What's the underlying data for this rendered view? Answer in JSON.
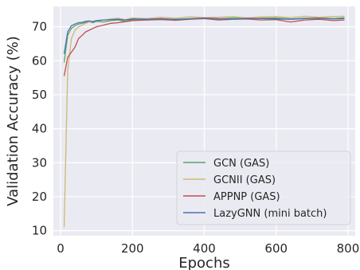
{
  "chart_data": {
    "type": "line",
    "title": "",
    "xlabel": "Epochs",
    "ylabel": "Validation Accuracy (%)",
    "xlim": [
      -20,
      820
    ],
    "ylim": [
      8.5,
      76
    ],
    "xticks": [
      0,
      200,
      400,
      600,
      800
    ],
    "yticks": [
      10,
      20,
      30,
      40,
      50,
      60,
      70
    ],
    "grid": true,
    "legend_position": "lower-right",
    "colors": {
      "background": "#eaeaf2",
      "grid": "#ffffff",
      "text": "#262626"
    },
    "x": [
      10,
      20,
      30,
      40,
      50,
      60,
      70,
      80,
      90,
      100,
      120,
      140,
      160,
      180,
      200,
      240,
      280,
      320,
      360,
      400,
      440,
      480,
      520,
      560,
      600,
      640,
      680,
      720,
      760,
      790
    ],
    "series": [
      {
        "name": "GCN (GAS)",
        "color": "#55a868",
        "values": [
          59.5,
          67.5,
          69.5,
          70.3,
          70.8,
          71.0,
          71.3,
          71.5,
          71.2,
          71.6,
          71.4,
          71.8,
          72.0,
          71.6,
          72.1,
          72.0,
          72.3,
          72.2,
          72.4,
          72.5,
          72.3,
          72.6,
          72.4,
          72.5,
          72.6,
          72.3,
          72.5,
          72.6,
          72.4,
          72.7
        ]
      },
      {
        "name": "GCNII (GAS)",
        "color": "#ccb974",
        "values": [
          11.0,
          57.0,
          66.5,
          69.0,
          70.0,
          70.5,
          71.0,
          71.4,
          71.6,
          71.8,
          72.0,
          72.3,
          72.5,
          72.1,
          72.6,
          72.4,
          72.8,
          72.5,
          72.9,
          72.7,
          72.8,
          73.0,
          72.6,
          72.9,
          73.0,
          72.7,
          73.1,
          72.8,
          73.0,
          73.1
        ]
      },
      {
        "name": "APPNP (GAS)",
        "color": "#c44e52",
        "values": [
          55.5,
          61.0,
          62.5,
          64.0,
          66.5,
          67.5,
          68.5,
          69.0,
          69.5,
          70.0,
          70.5,
          71.0,
          71.2,
          71.5,
          71.8,
          72.0,
          72.1,
          71.9,
          72.2,
          72.4,
          72.0,
          72.2,
          72.3,
          72.0,
          72.1,
          71.4,
          72.0,
          72.2,
          71.8,
          72.0
        ]
      },
      {
        "name": "LazyGNN (mini batch)",
        "color": "#4c72b0",
        "values": [
          62.0,
          68.5,
          70.3,
          70.8,
          71.2,
          71.3,
          71.6,
          71.7,
          71.5,
          71.8,
          72.0,
          72.1,
          72.2,
          72.0,
          72.3,
          72.2,
          72.4,
          72.1,
          72.3,
          72.6,
          72.4,
          72.2,
          72.5,
          72.4,
          72.3,
          72.2,
          72.4,
          72.5,
          72.3,
          72.4
        ]
      }
    ]
  }
}
